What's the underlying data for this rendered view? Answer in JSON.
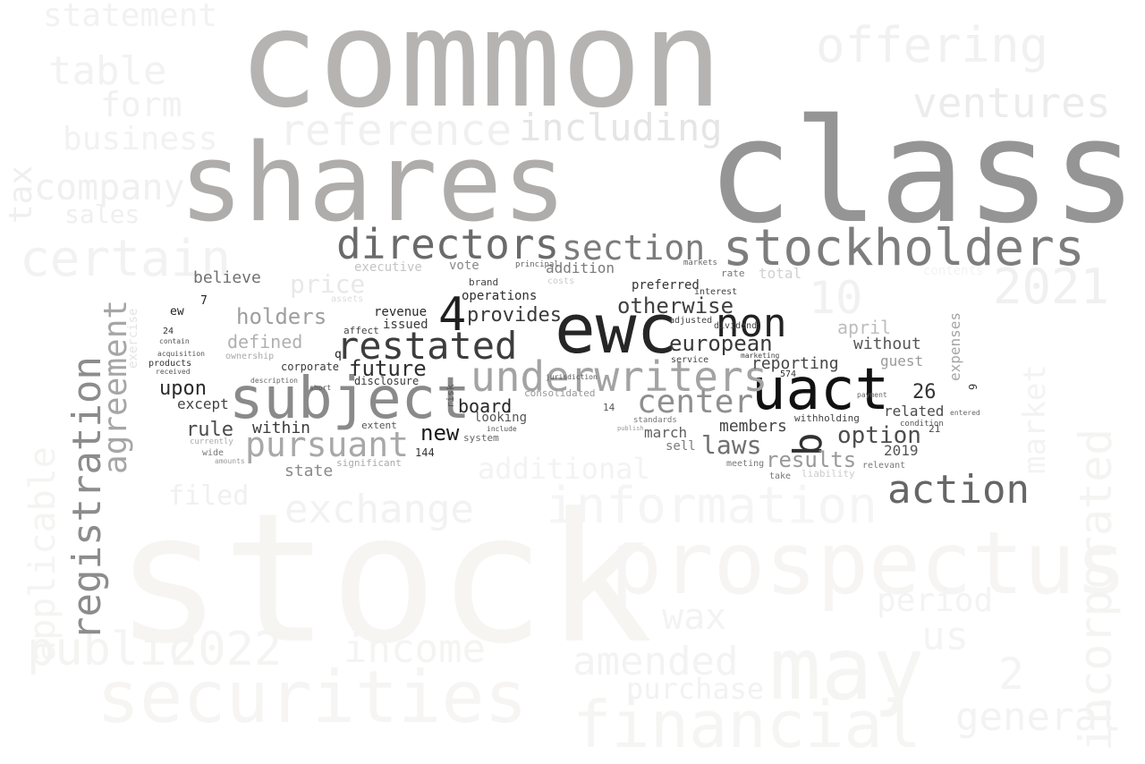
{
  "cloud": {
    "words": [
      {
        "text": "common",
        "color": "#b5b4b2"
      },
      {
        "text": "class",
        "color": "#959595"
      },
      {
        "text": "shares",
        "color": "#aeadab"
      },
      {
        "text": "stock",
        "color": "#f6f5f2"
      },
      {
        "text": "stockholders",
        "color": "#7d7d7d"
      },
      {
        "text": "directors",
        "color": "#6a6a6a"
      },
      {
        "text": "section",
        "color": "#7b7b7b"
      },
      {
        "text": "ewc",
        "color": "#262626"
      },
      {
        "text": "uact",
        "color": "#111111"
      },
      {
        "text": "subject",
        "color": "#8a8a8a"
      },
      {
        "text": "restated",
        "color": "#3d3d3d"
      },
      {
        "text": "underwriters",
        "color": "#a3a3a3"
      },
      {
        "text": "non",
        "color": "#222222"
      },
      {
        "text": "4",
        "color": "#1f1f1f"
      },
      {
        "text": "b",
        "color": "#303030"
      },
      {
        "text": "pursuant",
        "color": "#a8a8a8"
      },
      {
        "text": "registration",
        "color": "#8c8c8c"
      },
      {
        "text": "agreement",
        "color": "#a6a6a6"
      },
      {
        "text": "center",
        "color": "#8f8f8f"
      },
      {
        "text": "european",
        "color": "#3a3a3a"
      },
      {
        "text": "otherwise",
        "color": "#404040"
      },
      {
        "text": "option",
        "color": "#4d4d4d"
      },
      {
        "text": "laws",
        "color": "#707070"
      },
      {
        "text": "results",
        "color": "#999999"
      },
      {
        "text": "reporting",
        "color": "#444444"
      },
      {
        "text": "future",
        "color": "#2f2f2f"
      },
      {
        "text": "provides",
        "color": "#3a3a3a"
      },
      {
        "text": "holders",
        "color": "#9e9e9e"
      },
      {
        "text": "price",
        "color": "#e8e8e8"
      },
      {
        "text": "defined",
        "color": "#b0b0b0"
      },
      {
        "text": "believe",
        "color": "#707070"
      },
      {
        "text": "including",
        "color": "#e5e5e5"
      },
      {
        "text": "reference",
        "color": "#f0f0f0"
      },
      {
        "text": "offering",
        "color": "#f1f1f1"
      },
      {
        "text": "ventures",
        "color": "#ececec"
      },
      {
        "text": "2021",
        "color": "#f0f0f0"
      },
      {
        "text": "10",
        "color": "#f1f1f1"
      },
      {
        "text": "april",
        "color": "#bdbdbd"
      },
      {
        "text": "without",
        "color": "#555555"
      },
      {
        "text": "guest",
        "color": "#9a9a9a"
      },
      {
        "text": "expenses",
        "color": "#a5a5a5"
      },
      {
        "text": "26",
        "color": "#333333"
      },
      {
        "text": "related",
        "color": "#4a4a4a"
      },
      {
        "text": "2019",
        "color": "#555555"
      },
      {
        "text": "board",
        "color": "#262626"
      },
      {
        "text": "new",
        "color": "#1a1a1a"
      },
      {
        "text": "within",
        "color": "#3a3a3a"
      },
      {
        "text": "rule",
        "color": "#4a4a4a"
      },
      {
        "text": "upon",
        "color": "#2a2a2a"
      },
      {
        "text": "except",
        "color": "#444444"
      },
      {
        "text": "state",
        "color": "#8a8a8a"
      },
      {
        "text": "members",
        "color": "#444444"
      },
      {
        "text": "march",
        "color": "#606060"
      },
      {
        "text": "sell",
        "color": "#7a7a7a"
      },
      {
        "text": "issued",
        "color": "#3a3a3a"
      },
      {
        "text": "revenue",
        "color": "#2a2a2a"
      },
      {
        "text": "operations",
        "color": "#2f2f2f"
      },
      {
        "text": "corporate",
        "color": "#3a3a3a"
      },
      {
        "text": "disclosure",
        "color": "#3a3a3a"
      },
      {
        "text": "looking",
        "color": "#555555"
      },
      {
        "text": "addition",
        "color": "#7a7a7a"
      },
      {
        "text": "preferred",
        "color": "#333333"
      },
      {
        "text": "executive",
        "color": "#c4c4c4"
      },
      {
        "text": "vote",
        "color": "#888888"
      },
      {
        "text": "total",
        "color": "#d0d0d0"
      },
      {
        "text": "action",
        "color": "#666666"
      },
      {
        "text": "contents",
        "color": "#f3f3f3"
      },
      {
        "text": "information",
        "color": "#f5f5f5"
      },
      {
        "text": "exchange",
        "color": "#f2f2f2"
      },
      {
        "text": "prospectus",
        "color": "#f6f5f3"
      },
      {
        "text": "may",
        "color": "#f5f5f3"
      },
      {
        "text": "securities",
        "color": "#f6f5f3"
      },
      {
        "text": "financial",
        "color": "#f5f5f3"
      },
      {
        "text": "amended",
        "color": "#f3f3f3"
      },
      {
        "text": "income",
        "color": "#f4f4f2"
      },
      {
        "text": "public",
        "color": "#f4f4f2"
      },
      {
        "text": "2022",
        "color": "#f4f4f2"
      },
      {
        "text": "applicable",
        "color": "#f4f4f2"
      },
      {
        "text": "certain",
        "color": "#f2f2f2"
      },
      {
        "text": "company",
        "color": "#f0f0f0"
      },
      {
        "text": "table",
        "color": "#f2f2f2"
      },
      {
        "text": "form",
        "color": "#f1f1f1"
      },
      {
        "text": "business",
        "color": "#f2f2f2"
      },
      {
        "text": "statement",
        "color": "#f2f2f2"
      },
      {
        "text": "general",
        "color": "#f3f3f3"
      },
      {
        "text": "incorporated",
        "color": "#f4f4f2"
      },
      {
        "text": "market",
        "color": "#f3f3f3"
      },
      {
        "text": "us",
        "color": "#f4f4f4"
      },
      {
        "text": "2",
        "color": "#f4f4f4"
      },
      {
        "text": "purchase",
        "color": "#f2f2f2"
      },
      {
        "text": "additional",
        "color": "#f3f3f3"
      },
      {
        "text": "filed",
        "color": "#f0f0f0"
      },
      {
        "text": "period",
        "color": "#f3f3f3"
      },
      {
        "text": "wax",
        "color": "#f3f3f3"
      },
      {
        "text": "sales",
        "color": "#efefef"
      },
      {
        "text": "tax",
        "color": "#efefef"
      },
      {
        "text": "exercise",
        "color": "#e4e4e4"
      },
      {
        "text": "ew",
        "color": "#222222"
      },
      {
        "text": "7",
        "color": "#222222"
      },
      {
        "text": "24",
        "color": "#333333"
      },
      {
        "text": "products",
        "color": "#333333"
      },
      {
        "text": "q",
        "color": "#222222"
      },
      {
        "text": "affect",
        "color": "#444444"
      },
      {
        "text": "brand",
        "color": "#444444"
      },
      {
        "text": "144",
        "color": "#333333"
      },
      {
        "text": "extent",
        "color": "#555555"
      },
      {
        "text": "system",
        "color": "#666666"
      },
      {
        "text": "significant",
        "color": "#aaaaaa"
      },
      {
        "text": "14",
        "color": "#555555"
      },
      {
        "text": "consolidated",
        "color": "#999999"
      },
      {
        "text": "risk",
        "color": "#555555"
      },
      {
        "text": "costs",
        "color": "#cccccc"
      },
      {
        "text": "service",
        "color": "#444444"
      },
      {
        "text": "adjusted",
        "color": "#444444"
      },
      {
        "text": "interest",
        "color": "#444444"
      },
      {
        "text": "dividend",
        "color": "#444444"
      },
      {
        "text": "rate",
        "color": "#777777"
      },
      {
        "text": "withholding",
        "color": "#444444"
      },
      {
        "text": "21",
        "color": "#444444"
      },
      {
        "text": "9",
        "color": "#333333"
      },
      {
        "text": "ownership",
        "color": "#aaaaaa"
      },
      {
        "text": "assets",
        "color": "#dddddd"
      },
      {
        "text": "principal",
        "color": "#666666"
      },
      {
        "text": "markets",
        "color": "#666666"
      },
      {
        "text": "liability",
        "color": "#cccccc"
      },
      {
        "text": "relevant",
        "color": "#777777"
      },
      {
        "text": "meeting",
        "color": "#777777"
      },
      {
        "text": "take",
        "color": "#777777"
      },
      {
        "text": "condition",
        "color": "#555555"
      },
      {
        "text": "standards",
        "color": "#777777"
      },
      {
        "text": "description",
        "color": "#666666"
      },
      {
        "text": "short",
        "color": "#555555"
      },
      {
        "text": "jurisdiction",
        "color": "#555555"
      },
      {
        "text": "contain",
        "color": "#555555"
      },
      {
        "text": "acquisition",
        "color": "#555555"
      },
      {
        "text": "received",
        "color": "#555555"
      },
      {
        "text": "wide",
        "color": "#777777"
      },
      {
        "text": "amounts",
        "color": "#999999"
      },
      {
        "text": "currently",
        "color": "#aaaaaa"
      },
      {
        "text": "marketing",
        "color": "#444444"
      },
      {
        "text": "include",
        "color": "#555555"
      },
      {
        "text": "publish",
        "color": "#999999"
      },
      {
        "text": "payment",
        "color": "#666666"
      },
      {
        "text": "entered",
        "color": "#666666"
      },
      {
        "text": "574",
        "color": "#333333"
      }
    ]
  }
}
